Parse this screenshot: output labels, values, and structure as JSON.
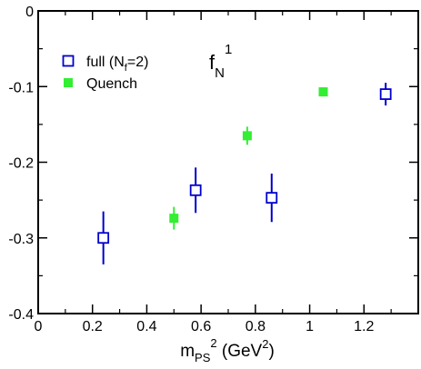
{
  "chart_data": {
    "type": "scatter",
    "xlabel": {
      "base": "m",
      "sub": "PS",
      "sup": "2",
      "unit_prefix": " (GeV",
      "unit_sup": "2",
      "unit_suffix": ")"
    },
    "ylabel": "",
    "xlim": [
      0,
      1.4
    ],
    "ylim": [
      -0.4,
      0
    ],
    "x_ticks": [
      0,
      0.2,
      0.4,
      0.6,
      0.8,
      1.0,
      1.2
    ],
    "x_tick_labels": [
      "0",
      "0.2",
      "0.4",
      "0.6",
      "0.8",
      "1",
      "1.2"
    ],
    "y_ticks": [
      0,
      -0.1,
      -0.2,
      -0.3,
      -0.4
    ],
    "y_tick_labels": [
      "0",
      "-0.1",
      "-0.2",
      "-0.3",
      "-0.4"
    ],
    "grid": false,
    "legend_position": "top-left",
    "annotation": {
      "base": "f",
      "sub": "N",
      "sup": "1"
    },
    "series": [
      {
        "name": "full (N_f=2)",
        "legend_label": {
          "base": "full (N",
          "sub": "f",
          "suffix": "=2)"
        },
        "marker": "open-square",
        "color": "#0000cc",
        "points": [
          {
            "x": 0.24,
            "y": -0.3,
            "err": 0.035
          },
          {
            "x": 0.58,
            "y": -0.237,
            "err": 0.03
          },
          {
            "x": 0.86,
            "y": -0.247,
            "err": 0.032
          },
          {
            "x": 1.28,
            "y": -0.11,
            "err": 0.015
          }
        ]
      },
      {
        "name": "Quench",
        "legend_label": {
          "base": "Quench",
          "sub": "",
          "suffix": ""
        },
        "marker": "filled-square",
        "color": "#33ee33",
        "points": [
          {
            "x": 0.5,
            "y": -0.274,
            "err": 0.015
          },
          {
            "x": 0.77,
            "y": -0.165,
            "err": 0.012
          },
          {
            "x": 1.05,
            "y": -0.107,
            "err": 0.006
          }
        ]
      }
    ]
  }
}
